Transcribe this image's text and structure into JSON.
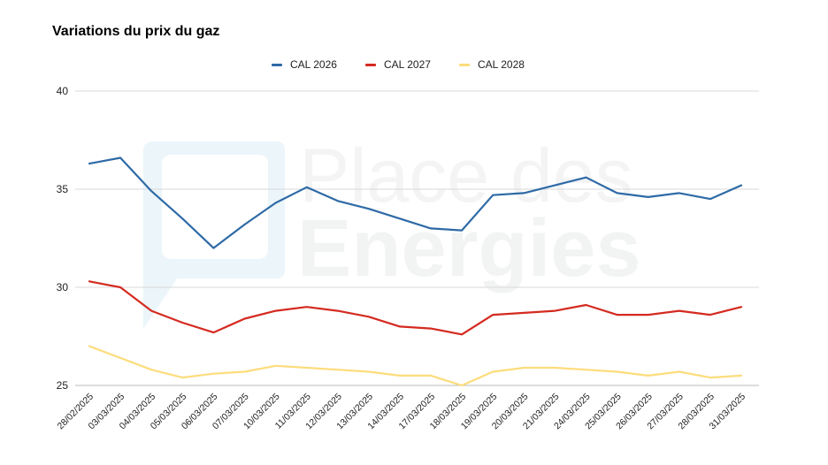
{
  "chart_data": {
    "type": "line",
    "title": "Variations du prix du gaz",
    "xlabel": "",
    "ylabel": "",
    "ylim": [
      25,
      40
    ],
    "yticks": [
      25,
      30,
      35,
      40
    ],
    "grid": true,
    "legend_position": "top-center",
    "categories": [
      "28/02/2025",
      "03/03/2025",
      "04/03/2025",
      "05/03/2025",
      "06/03/2025",
      "07/03/2025",
      "10/03/2025",
      "11/03/2025",
      "12/03/2025",
      "13/03/2025",
      "14/03/2025",
      "17/03/2025",
      "18/03/2025",
      "19/03/2025",
      "20/03/2025",
      "21/03/2025",
      "24/03/2025",
      "25/03/2025",
      "26/03/2025",
      "27/03/2025",
      "28/03/2025",
      "31/03/2025"
    ],
    "series": [
      {
        "name": "CAL 2026",
        "color": "#2e6aa6",
        "values": [
          36.3,
          36.6,
          34.9,
          33.5,
          32.0,
          33.2,
          34.3,
          35.1,
          34.4,
          34.0,
          33.5,
          33.0,
          32.9,
          34.7,
          34.8,
          35.2,
          35.6,
          34.8,
          34.6,
          34.8,
          34.5,
          35.2
        ]
      },
      {
        "name": "CAL 2027",
        "color": "#d42a20",
        "values": [
          30.3,
          30.0,
          28.8,
          28.2,
          27.7,
          28.4,
          28.8,
          29.0,
          28.8,
          28.5,
          28.0,
          27.9,
          27.6,
          28.6,
          28.7,
          28.8,
          29.1,
          28.6,
          28.6,
          28.8,
          28.6,
          29.0
        ]
      },
      {
        "name": "CAL 2028",
        "color": "#fddc7c",
        "values": [
          27.0,
          26.4,
          25.8,
          25.4,
          25.6,
          25.7,
          26.0,
          25.9,
          25.8,
          25.7,
          25.5,
          25.5,
          25.0,
          25.7,
          25.9,
          25.9,
          25.8,
          25.7,
          25.5,
          25.7,
          25.4,
          25.5
        ]
      }
    ]
  },
  "watermark": {
    "line1": "Place des",
    "line2": "Energies"
  }
}
